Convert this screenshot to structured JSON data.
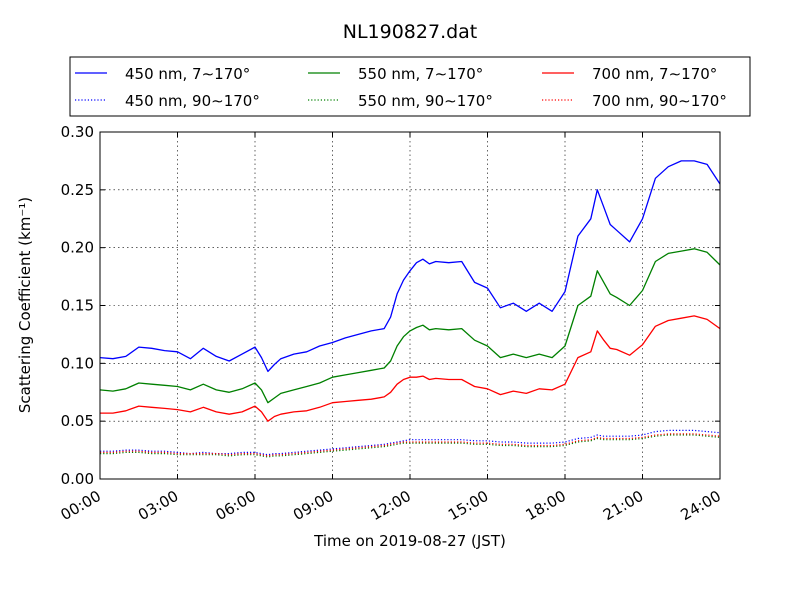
{
  "chart_data": {
    "type": "line",
    "title": "NL190827.dat",
    "xlabel": "Time on 2019-08-27 (JST)",
    "ylabel": "Scattering Coefficient (km⁻¹)",
    "xlim": [
      "00:00",
      "24:00"
    ],
    "ylim": [
      0.0,
      0.3
    ],
    "x_ticks": [
      "00:00",
      "03:00",
      "06:00",
      "09:00",
      "12:00",
      "15:00",
      "18:00",
      "21:00",
      "24:00"
    ],
    "y_ticks": [
      "0.00",
      "0.05",
      "0.10",
      "0.15",
      "0.20",
      "0.25",
      "0.30"
    ],
    "grid": true,
    "legend_position": "top",
    "x_hours": [
      0,
      0.5,
      1,
      1.5,
      2,
      2.5,
      3,
      3.5,
      4,
      4.5,
      5,
      5.5,
      6,
      6.25,
      6.5,
      6.75,
      7,
      7.5,
      8,
      8.5,
      9,
      9.5,
      10,
      10.5,
      11,
      11.25,
      11.5,
      11.75,
      12,
      12.25,
      12.5,
      12.75,
      13,
      13.5,
      14,
      14.5,
      15,
      15.5,
      16,
      16.5,
      17,
      17.5,
      18,
      18.5,
      19,
      19.25,
      19.5,
      19.75,
      20,
      20.5,
      21,
      21.5,
      22,
      22.5,
      23,
      23.5,
      24
    ],
    "series": [
      {
        "name": "450 nm, 7∼170°",
        "color": "#0000ff",
        "style": "solid",
        "values": [
          0.105,
          0.104,
          0.106,
          0.114,
          0.113,
          0.111,
          0.11,
          0.104,
          0.113,
          0.106,
          0.102,
          0.108,
          0.114,
          0.105,
          0.093,
          0.099,
          0.104,
          0.108,
          0.11,
          0.115,
          0.118,
          0.122,
          0.125,
          0.128,
          0.13,
          0.14,
          0.16,
          0.172,
          0.18,
          0.187,
          0.19,
          0.186,
          0.188,
          0.187,
          0.188,
          0.17,
          0.165,
          0.148,
          0.152,
          0.145,
          0.152,
          0.145,
          0.162,
          0.21,
          0.225,
          0.25,
          0.235,
          0.22,
          0.215,
          0.205,
          0.225,
          0.26,
          0.27,
          0.275,
          0.275,
          0.272,
          0.255
        ]
      },
      {
        "name": "550 nm, 7∼170°",
        "color": "#008000",
        "style": "solid",
        "values": [
          0.077,
          0.076,
          0.078,
          0.083,
          0.082,
          0.081,
          0.08,
          0.077,
          0.082,
          0.077,
          0.075,
          0.078,
          0.083,
          0.077,
          0.066,
          0.07,
          0.074,
          0.077,
          0.08,
          0.083,
          0.088,
          0.09,
          0.092,
          0.094,
          0.096,
          0.102,
          0.115,
          0.123,
          0.128,
          0.131,
          0.133,
          0.129,
          0.13,
          0.129,
          0.13,
          0.12,
          0.115,
          0.105,
          0.108,
          0.105,
          0.108,
          0.105,
          0.115,
          0.15,
          0.158,
          0.18,
          0.17,
          0.16,
          0.157,
          0.15,
          0.163,
          0.188,
          0.195,
          0.197,
          0.199,
          0.196,
          0.185
        ]
      },
      {
        "name": "700 nm, 7∼170°",
        "color": "#ff0000",
        "style": "solid",
        "values": [
          0.057,
          0.057,
          0.059,
          0.063,
          0.062,
          0.061,
          0.06,
          0.058,
          0.062,
          0.058,
          0.056,
          0.058,
          0.063,
          0.058,
          0.05,
          0.054,
          0.056,
          0.058,
          0.059,
          0.062,
          0.066,
          0.067,
          0.068,
          0.069,
          0.071,
          0.075,
          0.082,
          0.086,
          0.088,
          0.088,
          0.089,
          0.086,
          0.087,
          0.086,
          0.086,
          0.08,
          0.078,
          0.073,
          0.076,
          0.074,
          0.078,
          0.077,
          0.082,
          0.105,
          0.11,
          0.128,
          0.12,
          0.113,
          0.112,
          0.107,
          0.116,
          0.132,
          0.137,
          0.139,
          0.141,
          0.138,
          0.13
        ]
      },
      {
        "name": "450 nm, 90∼170°",
        "color": "#0000ff",
        "style": "dotted",
        "values": [
          0.024,
          0.024,
          0.025,
          0.025,
          0.024,
          0.024,
          0.023,
          0.022,
          0.023,
          0.022,
          0.022,
          0.023,
          0.023,
          0.022,
          0.021,
          0.022,
          0.022,
          0.023,
          0.024,
          0.025,
          0.026,
          0.027,
          0.028,
          0.029,
          0.03,
          0.031,
          0.032,
          0.033,
          0.034,
          0.034,
          0.034,
          0.034,
          0.034,
          0.034,
          0.034,
          0.033,
          0.033,
          0.032,
          0.032,
          0.031,
          0.031,
          0.031,
          0.032,
          0.035,
          0.036,
          0.038,
          0.037,
          0.037,
          0.037,
          0.037,
          0.038,
          0.041,
          0.042,
          0.042,
          0.042,
          0.041,
          0.04
        ]
      },
      {
        "name": "550 nm, 90∼170°",
        "color": "#008000",
        "style": "dotted",
        "values": [
          0.022,
          0.022,
          0.023,
          0.023,
          0.022,
          0.022,
          0.021,
          0.021,
          0.021,
          0.021,
          0.02,
          0.021,
          0.021,
          0.02,
          0.019,
          0.02,
          0.02,
          0.021,
          0.022,
          0.023,
          0.024,
          0.025,
          0.026,
          0.027,
          0.028,
          0.029,
          0.03,
          0.031,
          0.031,
          0.031,
          0.031,
          0.031,
          0.031,
          0.031,
          0.031,
          0.03,
          0.03,
          0.029,
          0.029,
          0.028,
          0.028,
          0.028,
          0.029,
          0.032,
          0.033,
          0.035,
          0.034,
          0.034,
          0.034,
          0.034,
          0.035,
          0.037,
          0.038,
          0.038,
          0.038,
          0.037,
          0.036
        ]
      },
      {
        "name": "700 nm, 90∼170°",
        "color": "#ff0000",
        "style": "dotted",
        "values": [
          0.023,
          0.023,
          0.024,
          0.024,
          0.023,
          0.023,
          0.022,
          0.022,
          0.022,
          0.022,
          0.021,
          0.022,
          0.022,
          0.021,
          0.02,
          0.021,
          0.021,
          0.022,
          0.023,
          0.024,
          0.025,
          0.026,
          0.027,
          0.028,
          0.029,
          0.03,
          0.031,
          0.032,
          0.032,
          0.032,
          0.032,
          0.032,
          0.032,
          0.032,
          0.032,
          0.031,
          0.031,
          0.03,
          0.03,
          0.029,
          0.029,
          0.029,
          0.03,
          0.033,
          0.034,
          0.036,
          0.035,
          0.035,
          0.035,
          0.035,
          0.036,
          0.038,
          0.039,
          0.039,
          0.039,
          0.038,
          0.037
        ]
      }
    ]
  }
}
